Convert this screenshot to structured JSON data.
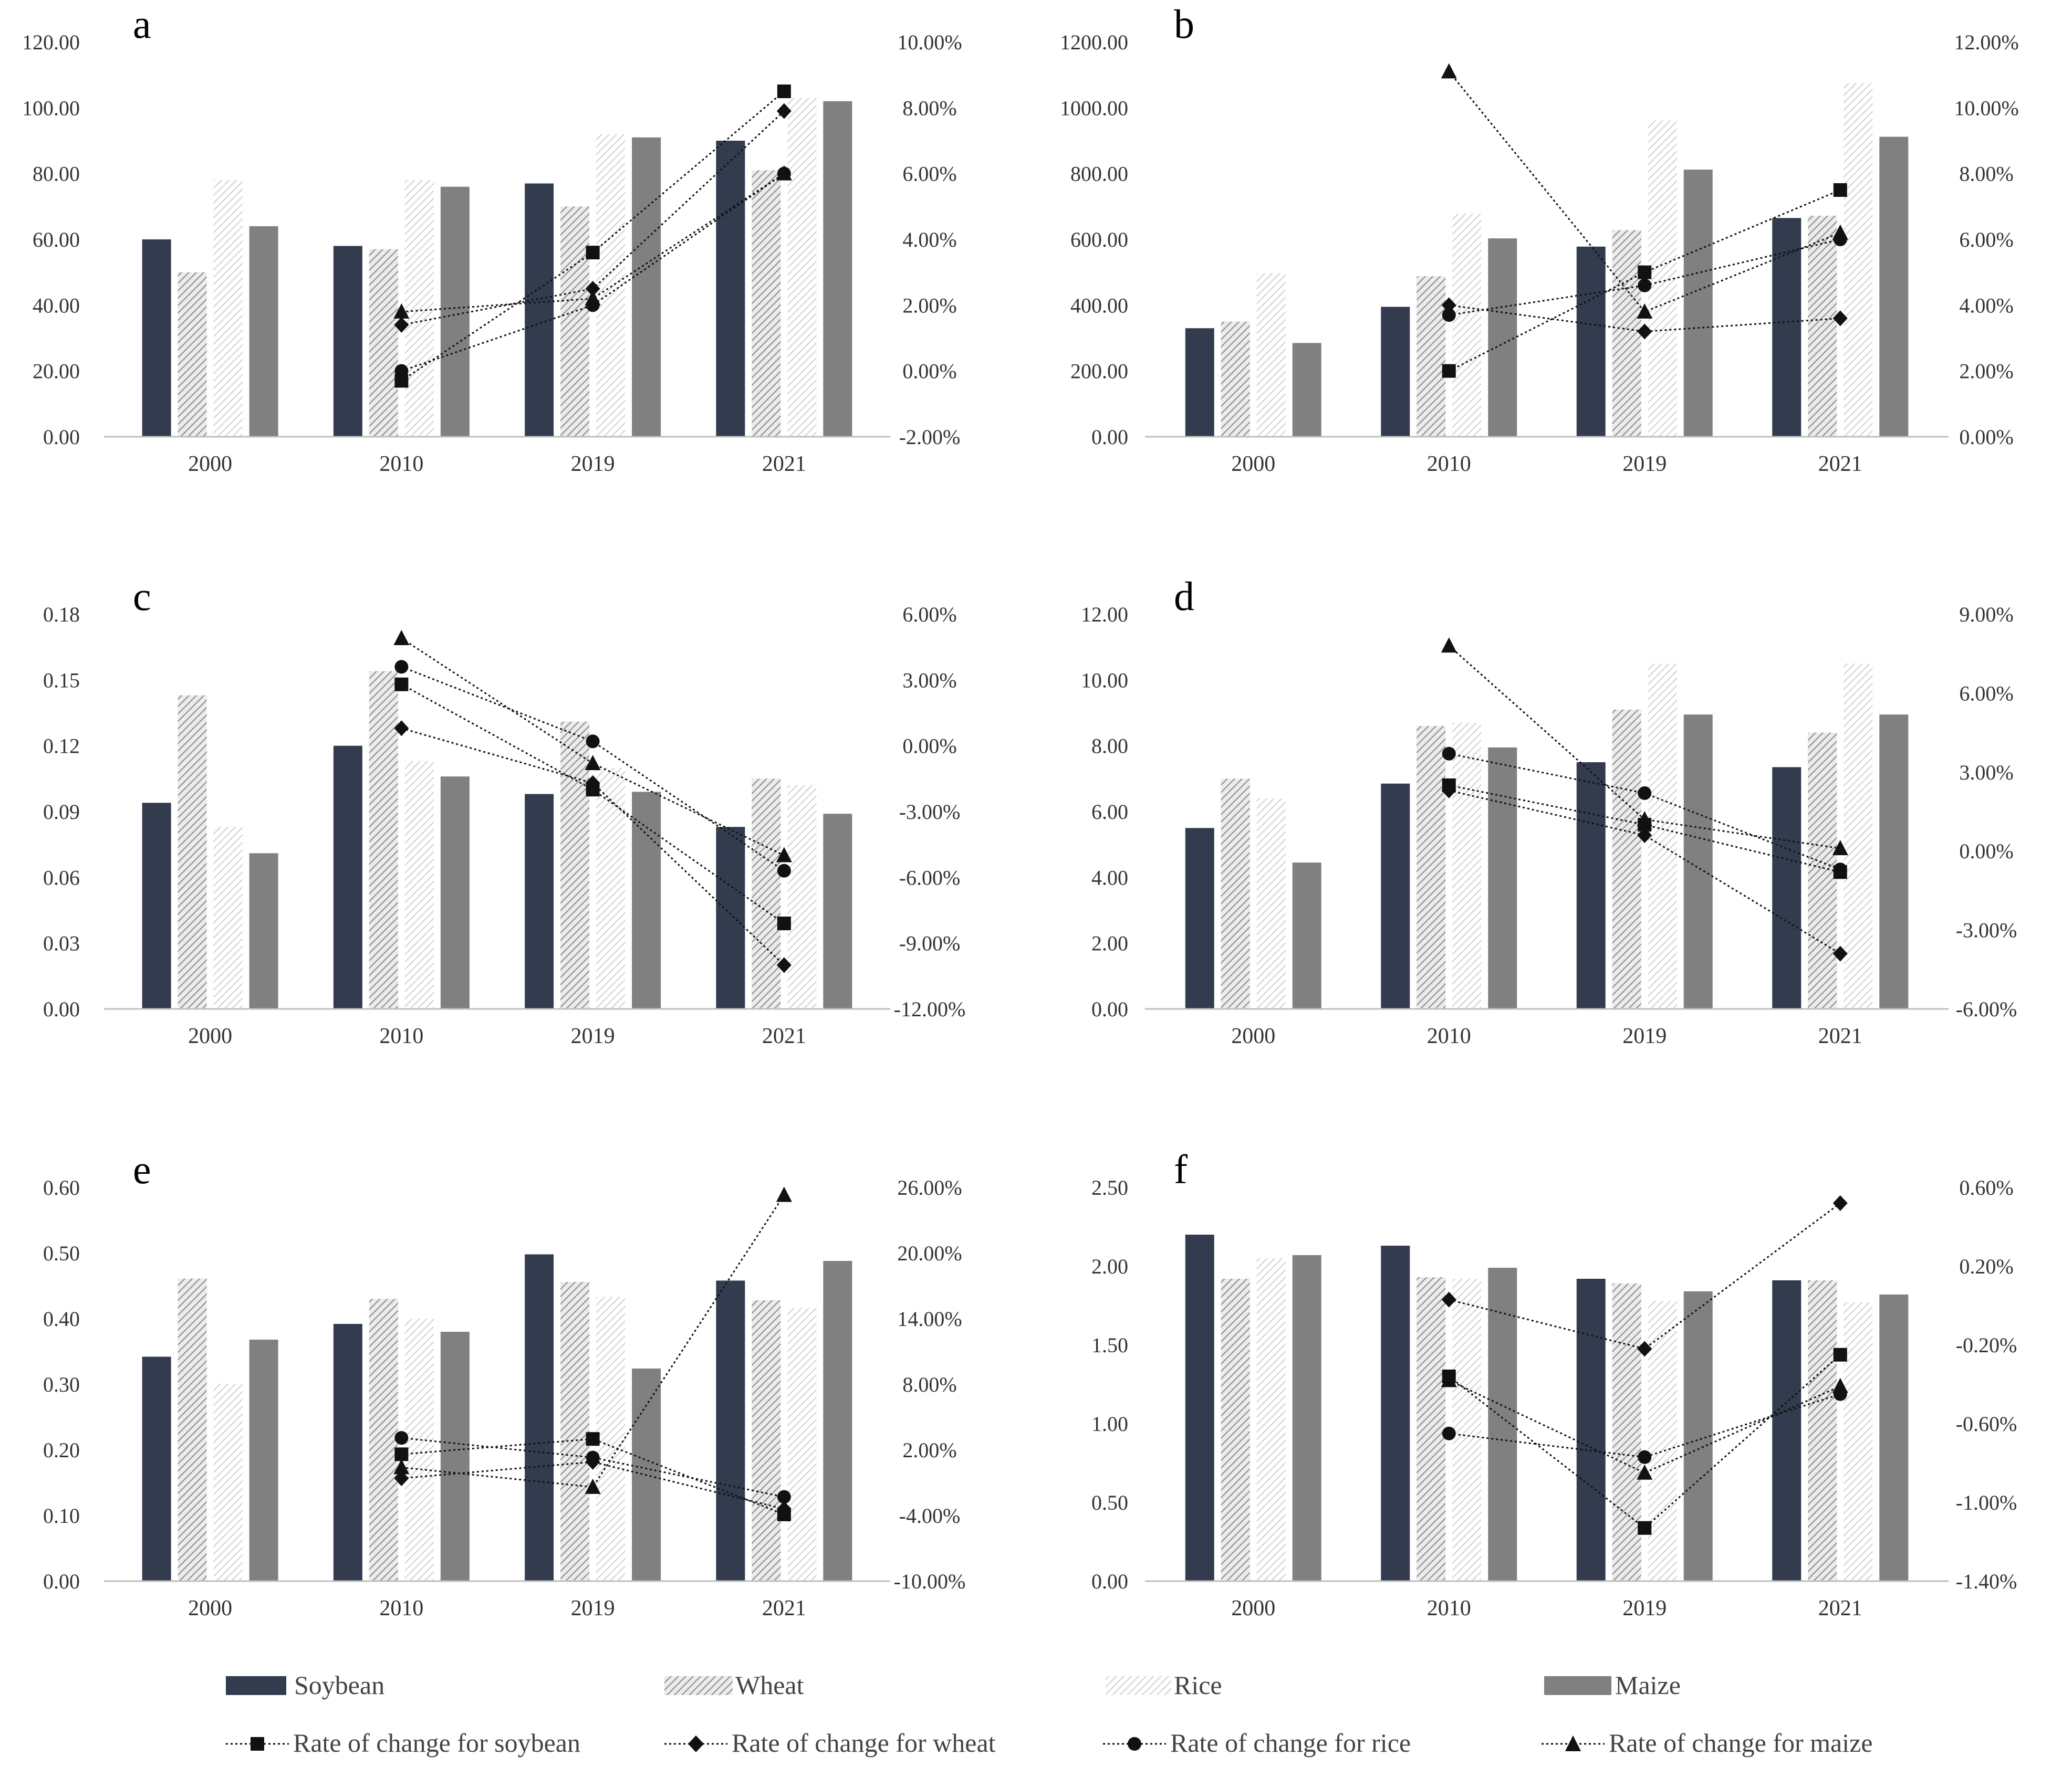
{
  "colors": {
    "soybean": "#323c4e",
    "wheat": "#b4b4b4",
    "rice": "#d3d3d3",
    "maize": "#808080",
    "line": "#111111",
    "axis": "#bfbfbf"
  },
  "legend": {
    "bars": [
      {
        "key": "soybean",
        "label": "Soybean"
      },
      {
        "key": "wheat",
        "label": "Wheat"
      },
      {
        "key": "rice",
        "label": "Rice"
      },
      {
        "key": "maize",
        "label": "Maize"
      }
    ],
    "lines": [
      {
        "key": "soybean",
        "marker": "square",
        "label": "Rate of change for soybean"
      },
      {
        "key": "wheat",
        "marker": "diamond",
        "label": "Rate of change for wheat"
      },
      {
        "key": "rice",
        "marker": "circle",
        "label": "Rate of change for rice"
      },
      {
        "key": "maize",
        "marker": "triangle",
        "label": "Rate of change for maize"
      }
    ]
  },
  "chart_data": [
    {
      "panel": "a",
      "type": "bar",
      "categories": [
        "2000",
        "2010",
        "2019",
        "2021"
      ],
      "left_axis": {
        "min": 0,
        "max": 120,
        "step": 20,
        "labels": [
          "0.00",
          "20.00",
          "40.00",
          "60.00",
          "80.00",
          "100.00",
          "120.00"
        ]
      },
      "right_axis": {
        "min": -2,
        "max": 10,
        "step": 2,
        "labels": [
          "-2.00%",
          "0.00%",
          "2.00%",
          "4.00%",
          "6.00%",
          "8.00%",
          "10.00%"
        ]
      },
      "bar_series": [
        {
          "name": "Soybean",
          "key": "soybean",
          "values": [
            60,
            58,
            77,
            90
          ]
        },
        {
          "name": "Wheat",
          "key": "wheat",
          "values": [
            50,
            57,
            70,
            81
          ]
        },
        {
          "name": "Rice",
          "key": "rice",
          "values": [
            78,
            78,
            92,
            103
          ]
        },
        {
          "name": "Maize",
          "key": "maize",
          "values": [
            64,
            76,
            91,
            102
          ]
        }
      ],
      "line_series": [
        {
          "name": "Rate of change for soybean",
          "key": "soybean",
          "marker": "square",
          "x": [
            "2010",
            "2019",
            "2021"
          ],
          "values": [
            -0.3,
            3.6,
            8.5
          ]
        },
        {
          "name": "Rate of change for wheat",
          "key": "wheat",
          "marker": "diamond",
          "x": [
            "2010",
            "2019",
            "2021"
          ],
          "values": [
            1.4,
            2.5,
            7.9
          ]
        },
        {
          "name": "Rate of change for rice",
          "key": "rice",
          "marker": "circle",
          "x": [
            "2010",
            "2019",
            "2021"
          ],
          "values": [
            0.0,
            2.0,
            6.0
          ]
        },
        {
          "name": "Rate of change for maize",
          "key": "maize",
          "marker": "triangle",
          "x": [
            "2010",
            "2019",
            "2021"
          ],
          "values": [
            1.8,
            2.2,
            6.0
          ]
        }
      ]
    },
    {
      "panel": "b",
      "type": "bar",
      "categories": [
        "2000",
        "2010",
        "2019",
        "2021"
      ],
      "left_axis": {
        "min": 0,
        "max": 1200,
        "step": 200,
        "labels": [
          "0.00",
          "200.00",
          "400.00",
          "600.00",
          "800.00",
          "1000.00",
          "1200.00"
        ]
      },
      "right_axis": {
        "min": 0,
        "max": 12,
        "step": 2,
        "labels": [
          "0.00%",
          "2.00%",
          "4.00%",
          "6.00%",
          "8.00%",
          "10.00%",
          "12.00%"
        ]
      },
      "bar_series": [
        {
          "name": "Soybean",
          "key": "soybean",
          "values": [
            330,
            395,
            578,
            665
          ]
        },
        {
          "name": "Wheat",
          "key": "wheat",
          "values": [
            350,
            488,
            628,
            672
          ]
        },
        {
          "name": "Rice",
          "key": "rice",
          "values": [
            497,
            678,
            962,
            1075
          ]
        },
        {
          "name": "Maize",
          "key": "maize",
          "values": [
            285,
            603,
            812,
            912
          ]
        }
      ],
      "line_series": [
        {
          "name": "Rate of change for soybean",
          "key": "soybean",
          "marker": "square",
          "x": [
            "2010",
            "2019",
            "2021"
          ],
          "values": [
            2.0,
            5.0,
            7.5
          ]
        },
        {
          "name": "Rate of change for wheat",
          "key": "wheat",
          "marker": "diamond",
          "x": [
            "2010",
            "2019",
            "2021"
          ],
          "values": [
            4.0,
            3.2,
            3.6
          ]
        },
        {
          "name": "Rate of change for rice",
          "key": "rice",
          "marker": "circle",
          "x": [
            "2010",
            "2019",
            "2021"
          ],
          "values": [
            3.7,
            4.6,
            6.0
          ]
        },
        {
          "name": "Rate of change for maize",
          "key": "maize",
          "marker": "triangle",
          "x": [
            "2010",
            "2019",
            "2021"
          ],
          "values": [
            11.1,
            3.8,
            6.2
          ]
        }
      ]
    },
    {
      "panel": "c",
      "type": "bar",
      "categories": [
        "2000",
        "2010",
        "2019",
        "2021"
      ],
      "left_axis": {
        "min": 0,
        "max": 0.18,
        "step": 0.03,
        "labels": [
          "0.00",
          "0.03",
          "0.06",
          "0.09",
          "0.12",
          "0.15",
          "0.18"
        ]
      },
      "right_axis": {
        "min": -12,
        "max": 6,
        "step": 3,
        "labels": [
          "-12.00%",
          "-9.00%",
          "-6.00%",
          "-3.00%",
          "0.00%",
          "3.00%",
          "6.00%"
        ]
      },
      "bar_series": [
        {
          "name": "Soybean",
          "key": "soybean",
          "values": [
            0.094,
            0.12,
            0.098,
            0.083
          ]
        },
        {
          "name": "Wheat",
          "key": "wheat",
          "values": [
            0.143,
            0.154,
            0.131,
            0.105
          ]
        },
        {
          "name": "Rice",
          "key": "rice",
          "values": [
            0.083,
            0.113,
            0.11,
            0.102
          ]
        },
        {
          "name": "Maize",
          "key": "maize",
          "values": [
            0.071,
            0.106,
            0.099,
            0.089
          ]
        }
      ],
      "line_series": [
        {
          "name": "Rate of change for soybean",
          "key": "soybean",
          "marker": "square",
          "x": [
            "2010",
            "2019",
            "2021"
          ],
          "values": [
            2.8,
            -2.0,
            -8.1
          ]
        },
        {
          "name": "Rate of change for wheat",
          "key": "wheat",
          "marker": "diamond",
          "x": [
            "2010",
            "2019",
            "2021"
          ],
          "values": [
            0.8,
            -1.7,
            -10.0
          ]
        },
        {
          "name": "Rate of change for rice",
          "key": "rice",
          "marker": "circle",
          "x": [
            "2010",
            "2019",
            "2021"
          ],
          "values": [
            3.6,
            0.2,
            -5.7
          ]
        },
        {
          "name": "Rate of change for maize",
          "key": "maize",
          "marker": "triangle",
          "x": [
            "2010",
            "2019",
            "2021"
          ],
          "values": [
            4.9,
            -0.8,
            -5.0
          ]
        }
      ]
    },
    {
      "panel": "d",
      "type": "bar",
      "categories": [
        "2000",
        "2010",
        "2019",
        "2021"
      ],
      "left_axis": {
        "min": 0,
        "max": 12,
        "step": 2,
        "labels": [
          "0.00",
          "2.00",
          "4.00",
          "6.00",
          "8.00",
          "10.00",
          "12.00"
        ]
      },
      "right_axis": {
        "min": -6,
        "max": 9,
        "step": 3,
        "labels": [
          "-6.00%",
          "-3.00%",
          "0.00%",
          "3.00%",
          "6.00%",
          "9.00%"
        ]
      },
      "bar_series": [
        {
          "name": "Soybean",
          "key": "soybean",
          "values": [
            5.5,
            6.85,
            7.5,
            7.35
          ]
        },
        {
          "name": "Wheat",
          "key": "wheat",
          "values": [
            7.0,
            8.6,
            9.1,
            8.4
          ]
        },
        {
          "name": "Rice",
          "key": "rice",
          "values": [
            6.4,
            8.7,
            10.5,
            10.5
          ]
        },
        {
          "name": "Maize",
          "key": "maize",
          "values": [
            4.45,
            7.95,
            8.95,
            8.95
          ]
        }
      ],
      "line_series": [
        {
          "name": "Rate of change for soybean",
          "key": "soybean",
          "marker": "square",
          "x": [
            "2010",
            "2019",
            "2021"
          ],
          "values": [
            2.5,
            1.0,
            -0.8
          ]
        },
        {
          "name": "Rate of change for wheat",
          "key": "wheat",
          "marker": "diamond",
          "x": [
            "2010",
            "2019",
            "2021"
          ],
          "values": [
            2.3,
            0.6,
            -3.9
          ]
        },
        {
          "name": "Rate of change for rice",
          "key": "rice",
          "marker": "circle",
          "x": [
            "2010",
            "2019",
            "2021"
          ],
          "values": [
            3.7,
            2.2,
            -0.7
          ]
        },
        {
          "name": "Rate of change for maize",
          "key": "maize",
          "marker": "triangle",
          "x": [
            "2010",
            "2019",
            "2021"
          ],
          "values": [
            7.8,
            1.2,
            0.1
          ]
        }
      ]
    },
    {
      "panel": "e",
      "type": "bar",
      "categories": [
        "2000",
        "2010",
        "2019",
        "2021"
      ],
      "left_axis": {
        "min": 0,
        "max": 0.6,
        "step": 0.1,
        "labels": [
          "0.00",
          "0.10",
          "0.20",
          "0.30",
          "0.40",
          "0.50",
          "0.60"
        ]
      },
      "right_axis": {
        "min": -10,
        "max": 26,
        "step": 6,
        "labels": [
          "-10.00%",
          "-4.00%",
          "2.00%",
          "8.00%",
          "14.00%",
          "20.00%",
          "26.00%"
        ]
      },
      "bar_series": [
        {
          "name": "Soybean",
          "key": "soybean",
          "values": [
            0.342,
            0.392,
            0.498,
            0.458
          ]
        },
        {
          "name": "Wheat",
          "key": "wheat",
          "values": [
            0.461,
            0.43,
            0.456,
            0.428
          ]
        },
        {
          "name": "Rice",
          "key": "rice",
          "values": [
            0.301,
            0.4,
            0.433,
            0.416
          ]
        },
        {
          "name": "Maize",
          "key": "maize",
          "values": [
            0.368,
            0.38,
            0.324,
            0.488
          ]
        }
      ],
      "line_series": [
        {
          "name": "Rate of change for soybean",
          "key": "soybean",
          "marker": "square",
          "x": [
            "2010",
            "2019",
            "2021"
          ],
          "values": [
            1.6,
            3.0,
            -3.9
          ]
        },
        {
          "name": "Rate of change for wheat",
          "key": "wheat",
          "marker": "diamond",
          "x": [
            "2010",
            "2019",
            "2021"
          ],
          "values": [
            -0.6,
            0.9,
            -3.4
          ]
        },
        {
          "name": "Rate of change for rice",
          "key": "rice",
          "marker": "circle",
          "x": [
            "2010",
            "2019",
            "2021"
          ],
          "values": [
            3.1,
            1.3,
            -2.3
          ]
        },
        {
          "name": "Rate of change for maize",
          "key": "maize",
          "marker": "triangle",
          "x": [
            "2010",
            "2019",
            "2021"
          ],
          "values": [
            0.4,
            -1.4,
            25.3
          ]
        }
      ]
    },
    {
      "panel": "f",
      "type": "bar",
      "categories": [
        "2000",
        "2010",
        "2019",
        "2021"
      ],
      "left_axis": {
        "min": 0,
        "max": 2.5,
        "step": 0.5,
        "labels": [
          "0.00",
          "0.50",
          "1.00",
          "1.50",
          "2.00",
          "2.50"
        ]
      },
      "right_axis": {
        "min": -1.4,
        "max": 0.6,
        "step": 0.4,
        "labels": [
          "-1.40%",
          "-1.00%",
          "-0.60%",
          "-0.20%",
          "0.20%",
          "0.60%"
        ]
      },
      "bar_series": [
        {
          "name": "Soybean",
          "key": "soybean",
          "values": [
            2.2,
            2.13,
            1.92,
            1.91
          ]
        },
        {
          "name": "Wheat",
          "key": "wheat",
          "values": [
            1.92,
            1.93,
            1.89,
            1.91
          ]
        },
        {
          "name": "Rice",
          "key": "rice",
          "values": [
            2.05,
            1.92,
            1.78,
            1.77
          ]
        },
        {
          "name": "Maize",
          "key": "maize",
          "values": [
            2.07,
            1.99,
            1.84,
            1.82
          ]
        }
      ],
      "line_series": [
        {
          "name": "Rate of change for soybean",
          "key": "soybean",
          "marker": "square",
          "x": [
            "2010",
            "2019",
            "2021"
          ],
          "values": [
            -0.36,
            -1.13,
            -0.25
          ]
        },
        {
          "name": "Rate of change for wheat",
          "key": "wheat",
          "marker": "diamond",
          "x": [
            "2010",
            "2019",
            "2021"
          ],
          "values": [
            0.03,
            -0.22,
            0.52
          ]
        },
        {
          "name": "Rate of change for rice",
          "key": "rice",
          "marker": "circle",
          "x": [
            "2010",
            "2019",
            "2021"
          ],
          "values": [
            -0.65,
            -0.77,
            -0.45
          ]
        },
        {
          "name": "Rate of change for maize",
          "key": "maize",
          "marker": "triangle",
          "x": [
            "2010",
            "2019",
            "2021"
          ],
          "values": [
            -0.38,
            -0.85,
            -0.41
          ]
        }
      ]
    }
  ]
}
